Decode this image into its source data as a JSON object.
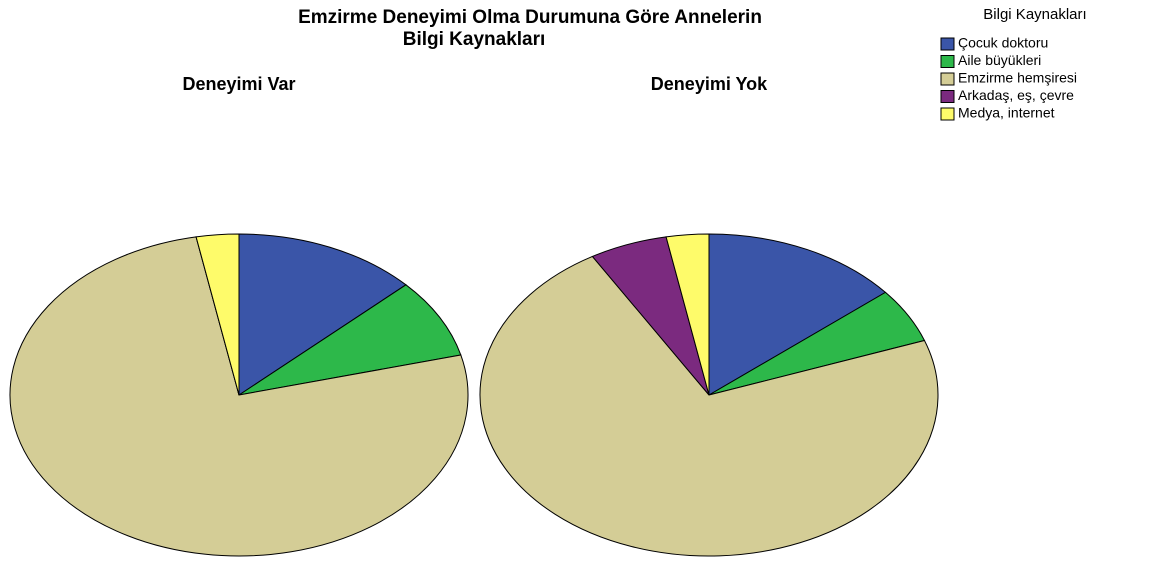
{
  "chart_data": {
    "type": "pie",
    "title": [
      "Emzirme Deneyimi Olma Durumuna Göre Annelerin",
      "Bilgi Kaynakları"
    ],
    "legend_title": "Bilgi Kaynakları",
    "categories": [
      "Çocuk doktoru",
      "Aile büyükleri",
      "Emzirme hemşiresi",
      "Arkadaş, eş, çevre",
      "Medya, internet"
    ],
    "colors": [
      "#3a55a8",
      "#2db84a",
      "#d4cd96",
      "#7b2a7f",
      "#fefb6a"
    ],
    "series": [
      {
        "name": "Deneyimi Var",
        "values": [
          13,
          8,
          76,
          0,
          3
        ]
      },
      {
        "name": "Deneyimi Yok",
        "values": [
          14,
          5.5,
          72,
          5.5,
          3
        ]
      }
    ]
  }
}
